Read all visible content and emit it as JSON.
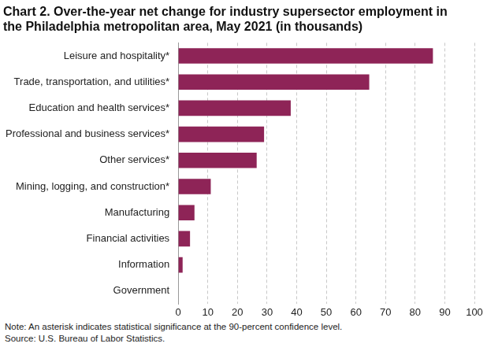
{
  "chart_data": {
    "type": "bar",
    "orientation": "horizontal",
    "title": [
      "Chart 2. Over-the-year net change for industry supersector employment in",
      "the Philadelphia metropolitan area, May 2021 (in thousands)"
    ],
    "categories": [
      "Leisure and hospitality*",
      "Trade, transportation, and utilities*",
      "Education and health services*",
      "Professional and business services*",
      "Other services*",
      "Mining, logging, and construction*",
      "Manufacturing",
      "Financial activities",
      "Information",
      "Government"
    ],
    "values": [
      86,
      64.5,
      38,
      29,
      26.5,
      11,
      5.5,
      4,
      1.5,
      0
    ],
    "color": "#8e2457",
    "xlim": [
      0,
      100
    ],
    "xticks": [
      0,
      10,
      20,
      30,
      40,
      50,
      60,
      70,
      80,
      90,
      100
    ],
    "grid": true,
    "notes": [
      "Note: An asterisk indicates statistical significance at the 90-percent confidence level.",
      "Source: U.S. Bureau of Labor Statistics."
    ]
  }
}
